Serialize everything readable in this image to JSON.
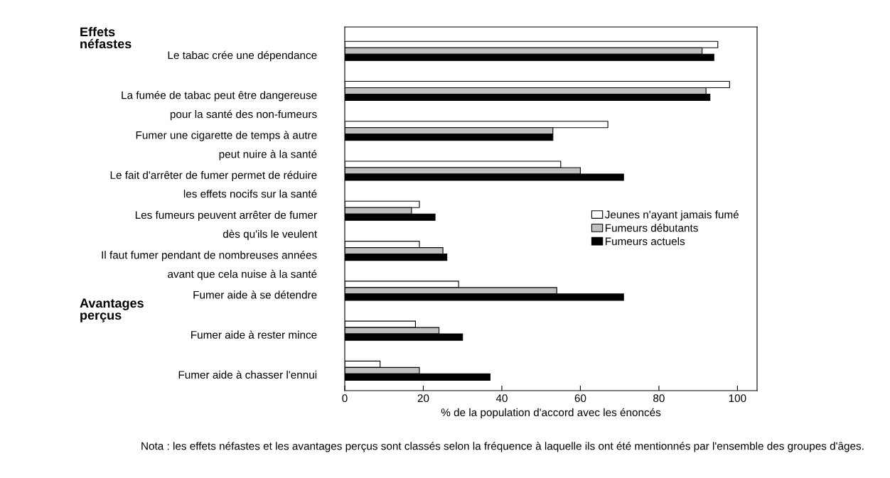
{
  "chart_data": {
    "type": "bar",
    "orientation": "horizontal",
    "categories": [
      "Le tabac crée une dépendance",
      "La fumée de tabac peut être dangereuse\npour la santé des non-fumeurs",
      "Fumer une cigarette de temps à autre\npeut nuire à la santé",
      "Le fait d'arrêter de fumer permet de réduire\nles effets nocifs sur la santé",
      "Les fumeurs peuvent arrêter de fumer\ndès qu'ils le veulent",
      "Il faut fumer pendant de nombreuses années\navant que cela nuise à la santé",
      "Fumer aide à se détendre",
      "Fumer aide à rester mince",
      "Fumer aide à chasser l'ennui"
    ],
    "series": [
      {
        "name": "Jeunes n'ayant jamais fumé",
        "color": "#ffffff",
        "values": [
          95,
          98,
          67,
          55,
          19,
          19,
          29,
          18,
          9
        ]
      },
      {
        "name": "Fumeurs débutants",
        "color": "#c0c0c0",
        "values": [
          91,
          92,
          53,
          60,
          17,
          25,
          54,
          24,
          19
        ]
      },
      {
        "name": "Fumeurs actuels",
        "color": "#000000",
        "values": [
          94,
          93,
          53,
          71,
          23,
          26,
          71,
          30,
          37
        ]
      }
    ],
    "xlabel": "% de la population d'accord avec les énoncés",
    "xlim": [
      0,
      105
    ],
    "xticks": [
      0,
      20,
      40,
      60,
      80,
      100
    ],
    "grid": false,
    "legend": "right",
    "annotations": [
      "Effets\nnéfastes",
      "Avantages\nperçus",
      "Nota : les effets néfastes et les avantages perçus sont classés selon la fréquence à laquelle ils ont été mentionnés par l'ensemble des groupes d'âges."
    ]
  }
}
